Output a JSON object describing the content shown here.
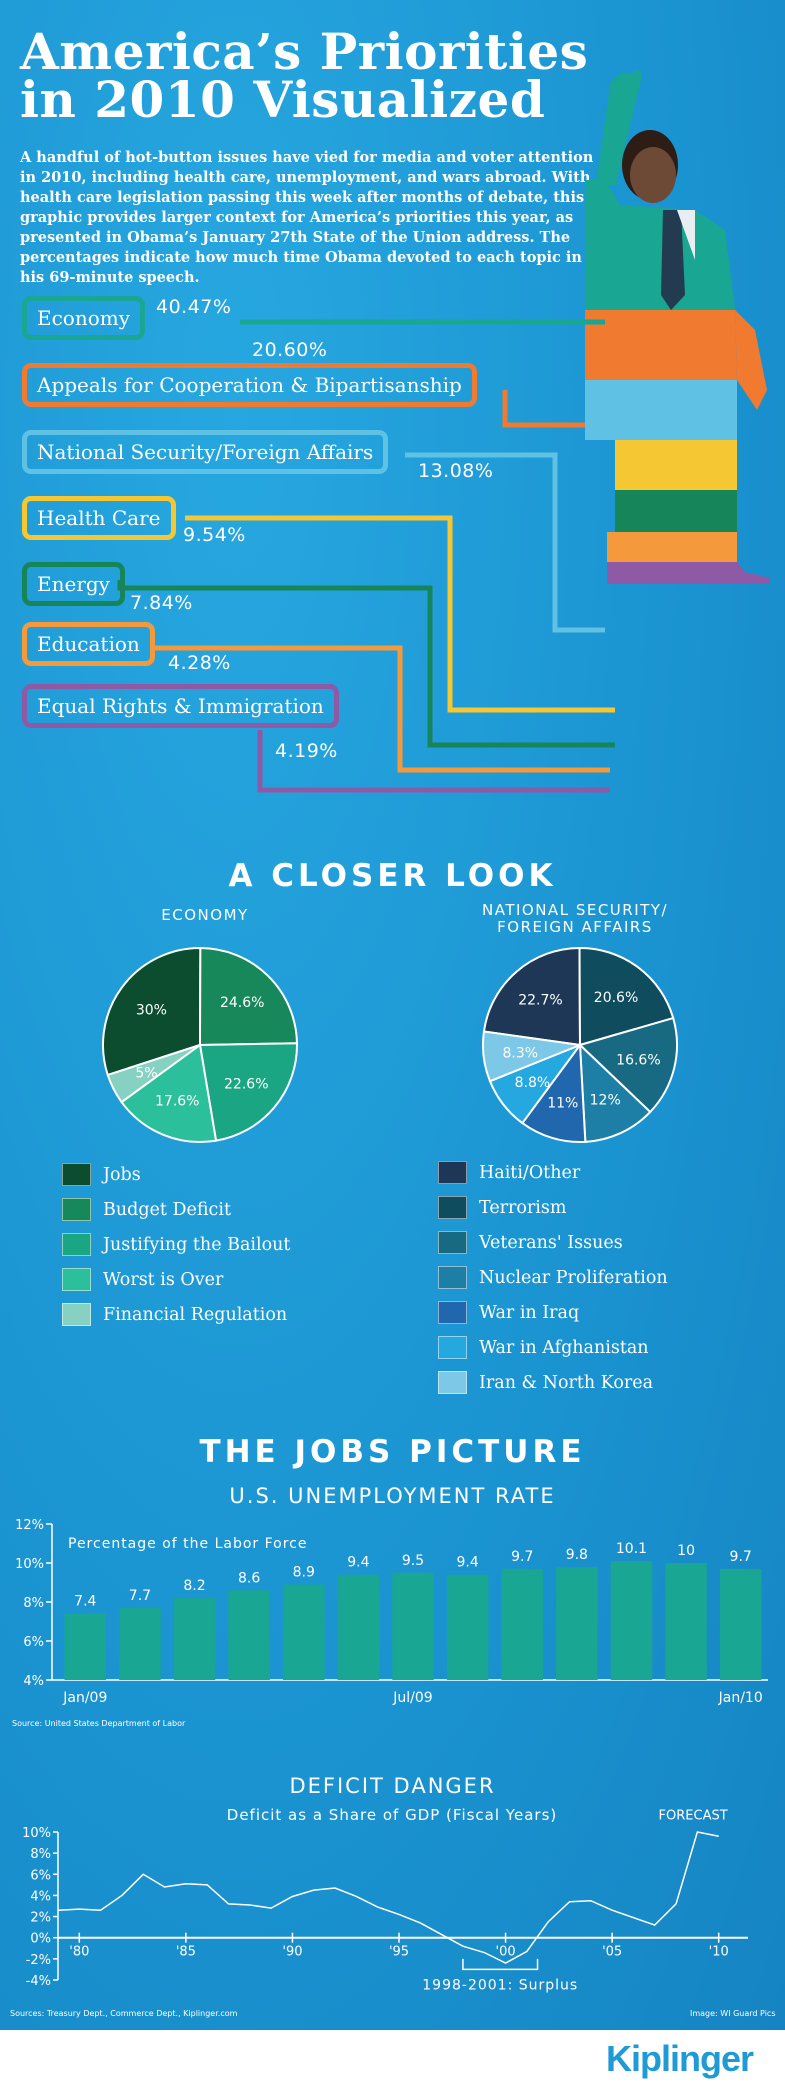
{
  "title_line1": "America’s Priorities",
  "title_line2": "in 2010 Visualized",
  "intro": "A handful of hot-button issues have vied for media and voter attention in 2010, including health care, unemployment, and wars abroad. With health care legislation passing this week after months of debate, this graphic provides larger context for America’s priorities this year, as presented in Obama’s January 27th State of the Union address. The percentages indicate how much time Obama devoted to each topic in his 69-minute speech.",
  "colors": {
    "economy": "#19a693",
    "cooperation": "#f07a30",
    "security": "#5fc1e3",
    "health": "#f5c732",
    "energy": "#17855a",
    "education": "#f49a3c",
    "rights": "#8e5aa6"
  },
  "topics": [
    {
      "label": "Economy",
      "pct": "40.47%",
      "value": 40.47
    },
    {
      "label": "Appeals for Cooperation & Bipartisanship",
      "pct": "20.60%",
      "value": 20.6
    },
    {
      "label": "National Security/Foreign Affairs",
      "pct": "13.08%",
      "value": 13.08
    },
    {
      "label": "Health Care",
      "pct": "9.54%",
      "value": 9.54
    },
    {
      "label": "Energy",
      "pct": "7.84%",
      "value": 7.84
    },
    {
      "label": "Education",
      "pct": "4.28%",
      "value": 4.28
    },
    {
      "label": "Equal Rights & Immigration",
      "pct": "4.19%",
      "value": 4.19
    }
  ],
  "closer_look": "A CLOSER LOOK",
  "economy_title": "ECONOMY",
  "security_title_line1": "NATIONAL SECURITY/",
  "security_title_line2": "FOREIGN AFFAIRS",
  "jobs_heading": "THE JOBS PICTURE",
  "unemp_title": "U.S. UNEMPLOYMENT RATE",
  "unemp_subtitle": "Percentage of the Labor Force",
  "unemp_source": "Source: United States Department of Labor",
  "deficit_heading": "DEFICIT DANGER",
  "deficit_subtitle": "Deficit as a Share of GDP (Fiscal Years)",
  "forecast_label": "FORECAST",
  "surplus_label": "1998-2001: Surplus",
  "sources": "Sources: Treasury Dept., Commerce Dept., Kiplinger.com",
  "image_credit": "Image: WI Guard Pics",
  "logo": "Kiplinger",
  "chart_data": [
    {
      "type": "pie",
      "title": "ECONOMY",
      "labels": [
        "Jobs",
        "Budget Deficit",
        "Justifying the Bailout",
        "Worst is Over",
        "Financial Regulation"
      ],
      "values": [
        30,
        24.6,
        22.6,
        17.6,
        5
      ],
      "value_labels": [
        "30%",
        "24.6%",
        "22.6%",
        "17.6%",
        "5%"
      ],
      "colors": [
        "#0b4d2e",
        "#17885a",
        "#1aa583",
        "#2cbf9c",
        "#86d1c2"
      ]
    },
    {
      "type": "pie",
      "title": "NATIONAL SECURITY/FOREIGN AFFAIRS",
      "labels": [
        "Haiti/Other",
        "Terrorism",
        "Veterans' Issues",
        "Nuclear Proliferation",
        "War in Iraq",
        "War in Afghanistan",
        "Iran & North Korea"
      ],
      "values": [
        22.7,
        20.6,
        16.6,
        12,
        11,
        8.8,
        8.3
      ],
      "value_labels": [
        "22.7%",
        "20.6%",
        "16.6%",
        "12%",
        "11%",
        "8.8%",
        "8.3%"
      ],
      "colors": [
        "#1f3756",
        "#0f4d5e",
        "#176a82",
        "#1e7fa6",
        "#2067ad",
        "#25a7df",
        "#7cc8e6"
      ]
    },
    {
      "type": "bar",
      "title": "U.S. UNEMPLOYMENT RATE",
      "ylabel": "Percentage of the Labor Force",
      "categories": [
        "Jan/09",
        "Feb/09",
        "Mar/09",
        "Apr/09",
        "May/09",
        "Jun/09",
        "Jul/09",
        "Aug/09",
        "Sep/09",
        "Oct/09",
        "Nov/09",
        "Dec/09",
        "Jan/10"
      ],
      "values": [
        7.4,
        7.7,
        8.2,
        8.6,
        8.9,
        9.4,
        9.5,
        9.4,
        9.7,
        9.8,
        10.1,
        10,
        9.7
      ],
      "xtick_labels": [
        "Jan/09",
        "Jul/09",
        "Jan/10"
      ],
      "yticks": [
        "12%",
        "10%",
        "8%",
        "6%",
        "4%"
      ],
      "ylim": [
        4,
        12
      ],
      "color": "#19a693"
    },
    {
      "type": "line",
      "title": "Deficit as a Share of GDP (Fiscal Years)",
      "x": [
        1979,
        1980,
        1981,
        1982,
        1983,
        1984,
        1985,
        1986,
        1987,
        1988,
        1989,
        1990,
        1991,
        1992,
        1993,
        1994,
        1995,
        1996,
        1997,
        1998,
        1999,
        2000,
        2001,
        2002,
        2003,
        2004,
        2005,
        2006,
        2007,
        2008,
        2009,
        2010
      ],
      "y": [
        2.6,
        2.7,
        2.6,
        4,
        6,
        4.8,
        5.1,
        5,
        3.2,
        3.1,
        2.8,
        3.9,
        4.5,
        4.7,
        3.9,
        2.9,
        2.2,
        1.4,
        0.3,
        -0.8,
        -1.4,
        -2.4,
        -1.3,
        1.5,
        3.4,
        3.5,
        2.6,
        1.9,
        1.2,
        3.2,
        10,
        9.6
      ],
      "xtick_labels": [
        "'80",
        "'85",
        "'90",
        "'95",
        "'00",
        "'05",
        "'10"
      ],
      "yticks": [
        "10%",
        "8%",
        "6%",
        "4%",
        "2%",
        "0%",
        "-2%",
        "-4%"
      ],
      "ylim": [
        -4,
        10
      ],
      "color": "#ffffff"
    }
  ]
}
